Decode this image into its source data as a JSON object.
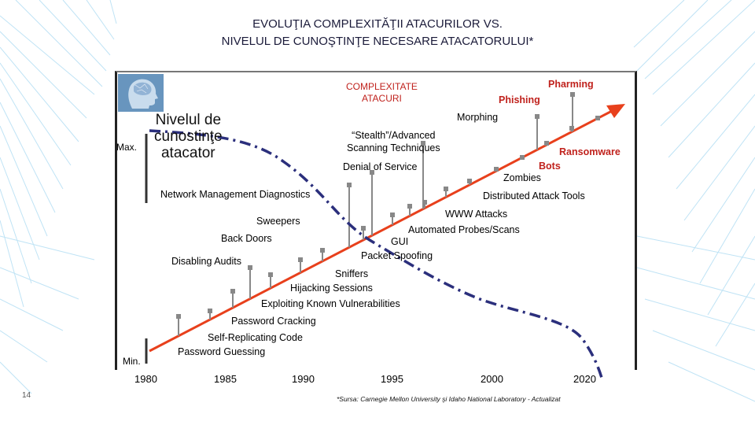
{
  "title": {
    "line1": "EVOLUŢIA COMPLEXITĂŢII ATACURILOR VS.",
    "line2": "NIVELUL DE CUNOŞTINŢE NECESARE ATACATORULUI*"
  },
  "axis": {
    "y_max": "Max.",
    "y_min": "Min.",
    "years": [
      "1980",
      "1985",
      "1990",
      "1995",
      "2000",
      "2020"
    ]
  },
  "series_labels": {
    "complexity": "COMPLEXITATE\nATACURI",
    "knowledge": "Nivelul de\ncunostinţe\natacator"
  },
  "attacks": [
    "Pharming",
    "Phishing",
    "Morphing",
    "“Stealth”/Advanced\nScanning Techniques",
    "Ransomware",
    "Bots",
    "Zombies",
    "Denial of Service",
    "Network Management Diagnostics",
    "Distributed Attack Tools",
    "WWW Attacks",
    "Automated Probes/Scans",
    "Sweepers",
    "Back Doors",
    "GUI",
    "Packet Spoofing",
    "Disabling Audits",
    "Sniffers",
    "Hijacking Sessions",
    "Exploiting Known Vulnerabilities",
    "Password Cracking",
    "Self-Replicating Code",
    "Password Guessing"
  ],
  "page_number": "14",
  "source": "*Sursa: Carnegie Mellon University şi Idaho National Laboratory - Actualizat",
  "colors": {
    "complexity_line": "#e8401c",
    "knowledge_line": "#2b2f7c",
    "marker": "#888888"
  }
}
